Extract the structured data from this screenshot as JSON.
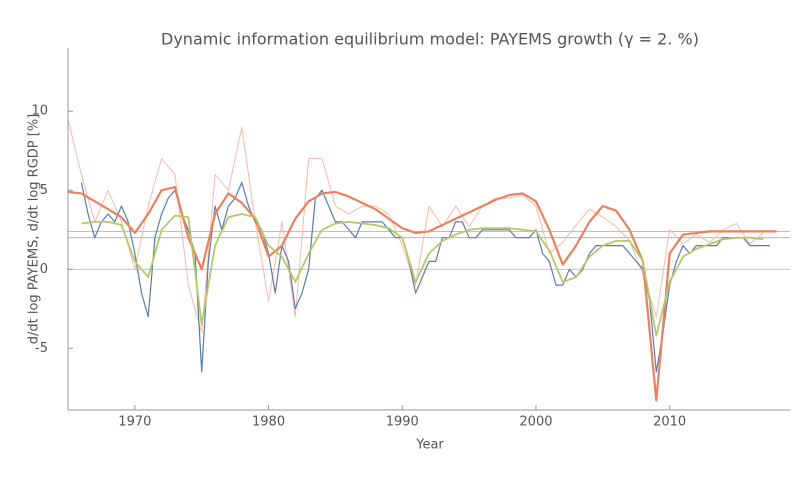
{
  "chart_data": {
    "type": "line",
    "title": "Dynamic information equilibrium model: PAYEMS growth (γ = 2. %)",
    "x_label": "Year",
    "y_label": "d/dt log PAYEMS, d/dt log RGDP [%]",
    "xlim": [
      1965,
      2019
    ],
    "ylim": [
      -8.9,
      14
    ],
    "xticks": [
      1970,
      1980,
      1990,
      2000,
      2010
    ],
    "yticks": [
      -5,
      0,
      5,
      10
    ],
    "hlines": [
      2.0,
      2.4
    ],
    "series": [
      {
        "color": "#f8b8aa",
        "x": [
          1965,
          1966,
          1967,
          1968,
          1969,
          1970,
          1971,
          1972,
          1973,
          1974,
          1975,
          1976,
          1977,
          1978,
          1979,
          1980,
          1981,
          1982,
          1983,
          1984,
          1985,
          1986,
          1987,
          1988,
          1989,
          1990,
          1991,
          1992,
          1993,
          1994,
          1995,
          1996,
          1997,
          1998,
          1999,
          2000,
          2001,
          2002,
          2003,
          2004,
          2005,
          2006,
          2007,
          2008,
          2009,
          2010,
          2011,
          2012,
          2013,
          2014,
          2015,
          2016,
          2017
        ],
        "values": [
          9.5,
          6,
          3,
          5,
          3,
          0,
          4,
          7,
          6,
          -1,
          -4,
          6,
          5,
          9,
          3,
          -2,
          3,
          -3,
          7,
          7,
          4,
          3.5,
          4,
          4,
          3.5,
          1.5,
          -1,
          4,
          2.7,
          4,
          2.7,
          4,
          4.5,
          4.5,
          4.7,
          4,
          1,
          1.7,
          2.8,
          3.8,
          3.3,
          2.7,
          1.8,
          -0.3,
          -3,
          2.5,
          1.6,
          2.2,
          1.7,
          2.5,
          2.9,
          1.6,
          2.3
        ]
      },
      {
        "color": "#5b7bb0",
        "x": [
          1966,
          1966.5,
          1967,
          1967.5,
          1968,
          1968.5,
          1969,
          1969.5,
          1970,
          1970.5,
          1971,
          1971.5,
          1972,
          1972.5,
          1973,
          1973.5,
          1974,
          1974.5,
          1975,
          1975.5,
          1976,
          1976.5,
          1977,
          1977.5,
          1978,
          1978.5,
          1979,
          1979.5,
          1980,
          1980.5,
          1981,
          1981.5,
          1982,
          1982.5,
          1983,
          1983.5,
          1984,
          1984.5,
          1985,
          1985.5,
          1986,
          1986.5,
          1987,
          1987.5,
          1988,
          1988.5,
          1989,
          1989.5,
          1990,
          1990.5,
          1991,
          1991.5,
          1992,
          1992.5,
          1993,
          1993.5,
          1994,
          1994.5,
          1995,
          1995.5,
          1996,
          1996.5,
          1997,
          1997.5,
          1998,
          1998.5,
          1999,
          1999.5,
          2000,
          2000.5,
          2001,
          2001.5,
          2002,
          2002.5,
          2003,
          2003.5,
          2004,
          2004.5,
          2005,
          2005.5,
          2006,
          2006.5,
          2007,
          2007.5,
          2008,
          2008.5,
          2009,
          2009.5,
          2010,
          2010.5,
          2011,
          2011.5,
          2012,
          2012.5,
          2013,
          2013.5,
          2014,
          2014.5,
          2015,
          2015.5,
          2016,
          2016.5,
          2017,
          2017.5
        ],
        "values": [
          5.5,
          3.5,
          2,
          3,
          3.5,
          3,
          4,
          3,
          1,
          -1.5,
          -3,
          2,
          3.5,
          4.5,
          5,
          3.5,
          2.5,
          1,
          -6.5,
          0.5,
          4,
          2.5,
          4,
          4.5,
          5.5,
          4,
          3,
          2.5,
          1,
          -1.5,
          1.5,
          0.5,
          -2.5,
          -1.5,
          0,
          4.5,
          5,
          4,
          3,
          3,
          2.5,
          2,
          3,
          3,
          3,
          3,
          2.5,
          2,
          2,
          0.5,
          -1.5,
          -0.5,
          0.5,
          0.5,
          2,
          2,
          3,
          3,
          2,
          2,
          2.5,
          2.5,
          2.5,
          2.5,
          2.5,
          2,
          2,
          2,
          2.5,
          1,
          0.5,
          -1,
          -1,
          0,
          -0.5,
          0,
          1,
          1.5,
          1.5,
          1.5,
          1.5,
          1.5,
          1,
          0.5,
          0,
          -2,
          -6.5,
          -4,
          -1,
          0.5,
          1.5,
          1,
          1.5,
          1.5,
          1.5,
          1.5,
          2,
          2,
          2,
          2,
          1.5,
          1.5,
          1.5,
          1.5
        ]
      },
      {
        "color": "#e8825e",
        "x": [
          1965,
          1966,
          1967,
          1968,
          1969,
          1970,
          1971,
          1972,
          1973,
          1974,
          1975,
          1976,
          1977,
          1978,
          1979,
          1980,
          1981,
          1982,
          1983,
          1984,
          1985,
          1986,
          1987,
          1988,
          1989,
          1990,
          1991,
          1992,
          1993,
          1994,
          1995,
          1996,
          1997,
          1998,
          1999,
          2000,
          2001,
          2002,
          2003,
          2004,
          2005,
          2006,
          2007,
          2008,
          2009,
          2010,
          2011,
          2012,
          2013,
          2014,
          2015,
          2016,
          2017,
          2018
        ],
        "values": [
          4.9,
          4.8,
          4.3,
          3.8,
          3.3,
          2.3,
          3.5,
          5.0,
          5.2,
          2.0,
          0.0,
          3.5,
          4.8,
          4.2,
          3.2,
          0.8,
          1.5,
          3.2,
          4.3,
          4.8,
          4.9,
          4.6,
          4.2,
          3.8,
          3.2,
          2.6,
          2.3,
          2.4,
          2.8,
          3.2,
          3.6,
          4.0,
          4.4,
          4.7,
          4.8,
          4.3,
          2.5,
          0.3,
          1.5,
          3.0,
          4.0,
          3.7,
          2.5,
          0.5,
          -8.3,
          1.0,
          2.2,
          2.3,
          2.4,
          2.4,
          2.4,
          2.4,
          2.4,
          2.4
        ]
      },
      {
        "color": "#b5c86a",
        "x": [
          1966,
          1967,
          1968,
          1969,
          1970,
          1971,
          1972,
          1973,
          1974,
          1975,
          1976,
          1977,
          1978,
          1979,
          1980,
          1981,
          1982,
          1983,
          1984,
          1985,
          1986,
          1987,
          1988,
          1989,
          1990,
          1991,
          1992,
          1993,
          1994,
          1995,
          1996,
          1997,
          1998,
          1999,
          2000,
          2001,
          2002,
          2003,
          2004,
          2005,
          2006,
          2007,
          2008,
          2009,
          2010,
          2011,
          2012,
          2013,
          2014,
          2015,
          2016,
          2017
        ],
        "values": [
          2.9,
          3.0,
          3.0,
          2.8,
          0.5,
          -0.5,
          2.5,
          3.4,
          3.3,
          -3.5,
          1.5,
          3.3,
          3.5,
          3.3,
          1.5,
          0.8,
          -0.8,
          1.0,
          2.5,
          2.9,
          3.0,
          2.9,
          2.8,
          2.6,
          2.0,
          -0.8,
          1.0,
          1.8,
          2.2,
          2.5,
          2.6,
          2.6,
          2.6,
          2.5,
          2.4,
          1.2,
          -0.8,
          -0.5,
          0.8,
          1.5,
          1.8,
          1.8,
          0.5,
          -4.2,
          -0.8,
          0.8,
          1.3,
          1.6,
          1.9,
          2.0,
          2.0,
          1.9
        ]
      }
    ]
  }
}
